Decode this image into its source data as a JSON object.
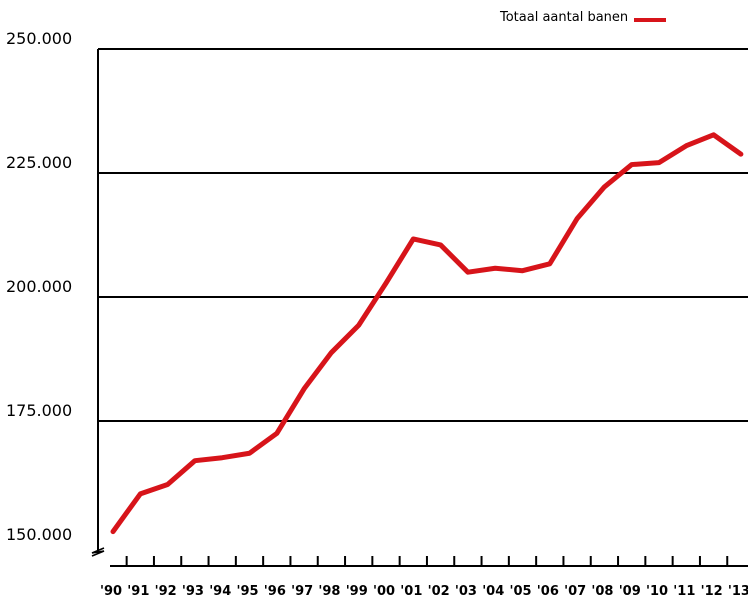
{
  "chart_data": {
    "type": "line",
    "categories": [
      "'90",
      "'91",
      "'92",
      "'93",
      "'94",
      "'95",
      "'96",
      "'97",
      "'98",
      "'99",
      "'00",
      "'01",
      "'02",
      "'03",
      "'04",
      "'05",
      "'06",
      "'07",
      "'08",
      "'09",
      "'10",
      "'11",
      "'12",
      "'13"
    ],
    "series": [
      {
        "name": "Totaal aantal banen",
        "color": "#d7141a",
        "values": [
          152700,
          160300,
          162200,
          167000,
          167600,
          168500,
          172500,
          181500,
          188800,
          194300,
          202800,
          211700,
          210500,
          205000,
          205800,
          205300,
          206700,
          215800,
          222200,
          226700,
          227100,
          230500,
          232700,
          228800
        ]
      }
    ],
    "yticks": [
      "150.000",
      "175.000",
      "200.000",
      "225.000",
      "250.000"
    ],
    "ylim": [
      150000,
      250000
    ],
    "grid": "horizontal",
    "axis_break": true,
    "legend_position": "top-right"
  }
}
